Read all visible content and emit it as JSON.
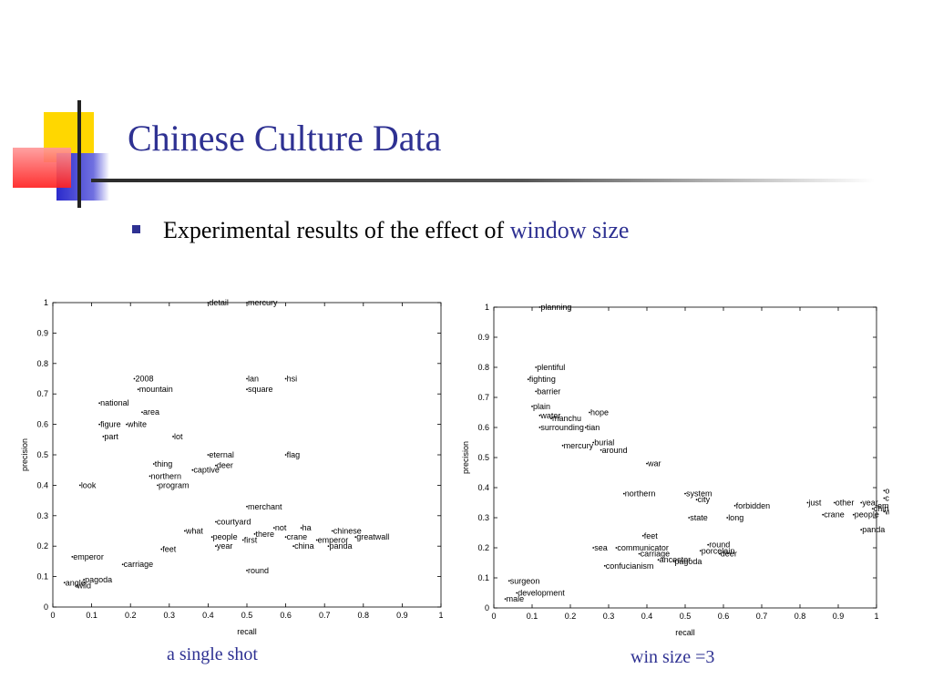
{
  "title": "Chinese Culture Data",
  "bullet": {
    "text": "Experimental results of the effect of ",
    "accent": "window size"
  },
  "colors": {
    "title": "#2e3192",
    "accent": "#2e3192",
    "deco_yellow": "#ffd700",
    "deco_blue": "#3333cc",
    "deco_red": "#ff3333"
  },
  "chart_data": [
    {
      "type": "scatter",
      "caption": "a single shot",
      "xlabel": "recall",
      "ylabel": "precision",
      "xlim": [
        0,
        1
      ],
      "ylim": [
        0,
        1
      ],
      "xticks": [
        "0",
        "0.1",
        "0.2",
        "0.3",
        "0.4",
        "0.5",
        "0.6",
        "0.7",
        "0.8",
        "0.9",
        "1"
      ],
      "yticks": [
        "0",
        "0.1",
        "0.2",
        "0.3",
        "0.4",
        "0.5",
        "0.6",
        "0.7",
        "0.8",
        "0.9",
        "1"
      ],
      "grid": false,
      "points": [
        {
          "label": "detail",
          "x": 0.4,
          "y": 1.0
        },
        {
          "label": "mercury",
          "x": 0.5,
          "y": 1.0
        },
        {
          "label": "2008",
          "x": 0.21,
          "y": 0.75
        },
        {
          "label": "lan",
          "x": 0.5,
          "y": 0.75
        },
        {
          "label": "hsi",
          "x": 0.6,
          "y": 0.75
        },
        {
          "label": "mountain",
          "x": 0.22,
          "y": 0.715
        },
        {
          "label": "square",
          "x": 0.5,
          "y": 0.715
        },
        {
          "label": "national",
          "x": 0.12,
          "y": 0.67
        },
        {
          "label": "area",
          "x": 0.23,
          "y": 0.64
        },
        {
          "label": "figure",
          "x": 0.12,
          "y": 0.6
        },
        {
          "label": "white",
          "x": 0.19,
          "y": 0.6
        },
        {
          "label": "part",
          "x": 0.13,
          "y": 0.56
        },
        {
          "label": "lot",
          "x": 0.31,
          "y": 0.56
        },
        {
          "label": "eternal",
          "x": 0.4,
          "y": 0.5
        },
        {
          "label": "flag",
          "x": 0.6,
          "y": 0.5
        },
        {
          "label": "thing",
          "x": 0.26,
          "y": 0.47
        },
        {
          "label": "deer",
          "x": 0.42,
          "y": 0.465
        },
        {
          "label": "captive",
          "x": 0.36,
          "y": 0.45
        },
        {
          "label": "northern",
          "x": 0.25,
          "y": 0.43
        },
        {
          "label": "look",
          "x": 0.07,
          "y": 0.4
        },
        {
          "label": "program",
          "x": 0.27,
          "y": 0.4
        },
        {
          "label": "merchant",
          "x": 0.5,
          "y": 0.33
        },
        {
          "label": "courtyard",
          "x": 0.42,
          "y": 0.28
        },
        {
          "label": "not",
          "x": 0.57,
          "y": 0.26
        },
        {
          "label": "ha",
          "x": 0.64,
          "y": 0.26
        },
        {
          "label": "chinese",
          "x": 0.72,
          "y": 0.25
        },
        {
          "label": "what",
          "x": 0.34,
          "y": 0.25
        },
        {
          "label": "people",
          "x": 0.41,
          "y": 0.23
        },
        {
          "label": "first",
          "x": 0.49,
          "y": 0.22
        },
        {
          "label": "there",
          "x": 0.52,
          "y": 0.24
        },
        {
          "label": "crane",
          "x": 0.6,
          "y": 0.23
        },
        {
          "label": "emperor",
          "x": 0.68,
          "y": 0.22
        },
        {
          "label": "greatwall",
          "x": 0.78,
          "y": 0.23
        },
        {
          "label": "china",
          "x": 0.62,
          "y": 0.2
        },
        {
          "label": "panda",
          "x": 0.71,
          "y": 0.2
        },
        {
          "label": "year",
          "x": 0.42,
          "y": 0.2
        },
        {
          "label": "feet",
          "x": 0.28,
          "y": 0.19
        },
        {
          "label": "carriage",
          "x": 0.18,
          "y": 0.14
        },
        {
          "label": "round",
          "x": 0.5,
          "y": 0.12
        },
        {
          "label": "emperor",
          "x": 0.05,
          "y": 0.165
        },
        {
          "label": "pagoda",
          "x": 0.08,
          "y": 0.09
        },
        {
          "label": "angle",
          "x": 0.03,
          "y": 0.08
        },
        {
          "label": "wild",
          "x": 0.06,
          "y": 0.07
        }
      ]
    },
    {
      "type": "scatter",
      "caption": "win size =3",
      "xlabel": "recall",
      "ylabel": "precision",
      "xlim": [
        0,
        1
      ],
      "ylim": [
        0,
        1
      ],
      "xticks": [
        "0",
        "0.1",
        "0.2",
        "0.3",
        "0.4",
        "0.5",
        "0.6",
        "0.7",
        "0.8",
        "0.9",
        "1"
      ],
      "yticks": [
        "0",
        "0.1",
        "0.2",
        "0.3",
        "0.4",
        "0.5",
        "0.6",
        "0.7",
        "0.8",
        "0.9",
        "1"
      ],
      "grid": false,
      "points": [
        {
          "label": "planning",
          "x": 0.12,
          "y": 1.0
        },
        {
          "label": "plentiful",
          "x": 0.11,
          "y": 0.8
        },
        {
          "label": "fighting",
          "x": 0.09,
          "y": 0.76
        },
        {
          "label": "barrier",
          "x": 0.11,
          "y": 0.72
        },
        {
          "label": "plain",
          "x": 0.1,
          "y": 0.67
        },
        {
          "label": "water",
          "x": 0.12,
          "y": 0.64
        },
        {
          "label": "hope",
          "x": 0.25,
          "y": 0.65
        },
        {
          "label": "manchu",
          "x": 0.15,
          "y": 0.63
        },
        {
          "label": "surrounding",
          "x": 0.12,
          "y": 0.6
        },
        {
          "label": "tian",
          "x": 0.24,
          "y": 0.6
        },
        {
          "label": "mercury",
          "x": 0.18,
          "y": 0.54
        },
        {
          "label": "burial",
          "x": 0.26,
          "y": 0.55
        },
        {
          "label": "around",
          "x": 0.28,
          "y": 0.525
        },
        {
          "label": "war",
          "x": 0.4,
          "y": 0.48
        },
        {
          "label": "northern",
          "x": 0.34,
          "y": 0.38
        },
        {
          "label": "system",
          "x": 0.5,
          "y": 0.38
        },
        {
          "label": "city",
          "x": 0.53,
          "y": 0.36
        },
        {
          "label": "forbidden",
          "x": 0.63,
          "y": 0.34
        },
        {
          "label": "state",
          "x": 0.51,
          "y": 0.3
        },
        {
          "label": "long",
          "x": 0.61,
          "y": 0.3
        },
        {
          "label": "just",
          "x": 0.82,
          "y": 0.35
        },
        {
          "label": "other",
          "x": 0.89,
          "y": 0.35
        },
        {
          "label": "year",
          "x": 0.96,
          "y": 0.35
        },
        {
          "label": "one",
          "x": 1.02,
          "y": 0.39
        },
        {
          "label": "chinese",
          "x": 1.02,
          "y": 0.365
        },
        {
          "label": "emperor",
          "x": 1.0,
          "y": 0.34
        },
        {
          "label": "china",
          "x": 0.99,
          "y": 0.33
        },
        {
          "label": "wall",
          "x": 1.02,
          "y": 0.32
        },
        {
          "label": "crane",
          "x": 0.86,
          "y": 0.31
        },
        {
          "label": "people",
          "x": 0.94,
          "y": 0.31
        },
        {
          "label": "panda",
          "x": 0.96,
          "y": 0.26
        },
        {
          "label": "feet",
          "x": 0.39,
          "y": 0.24
        },
        {
          "label": "sea",
          "x": 0.26,
          "y": 0.2
        },
        {
          "label": "communicator",
          "x": 0.32,
          "y": 0.2
        },
        {
          "label": "carriage",
          "x": 0.38,
          "y": 0.18
        },
        {
          "label": "porcelain",
          "x": 0.54,
          "y": 0.19
        },
        {
          "label": "deer",
          "x": 0.59,
          "y": 0.18
        },
        {
          "label": "round",
          "x": 0.56,
          "y": 0.21
        },
        {
          "label": "ancestor",
          "x": 0.43,
          "y": 0.16
        },
        {
          "label": "pagoda",
          "x": 0.47,
          "y": 0.155
        },
        {
          "label": "confucianism",
          "x": 0.29,
          "y": 0.14
        },
        {
          "label": "surgeon",
          "x": 0.04,
          "y": 0.09
        },
        {
          "label": "development",
          "x": 0.06,
          "y": 0.05
        },
        {
          "label": "male",
          "x": 0.03,
          "y": 0.03
        }
      ]
    }
  ]
}
